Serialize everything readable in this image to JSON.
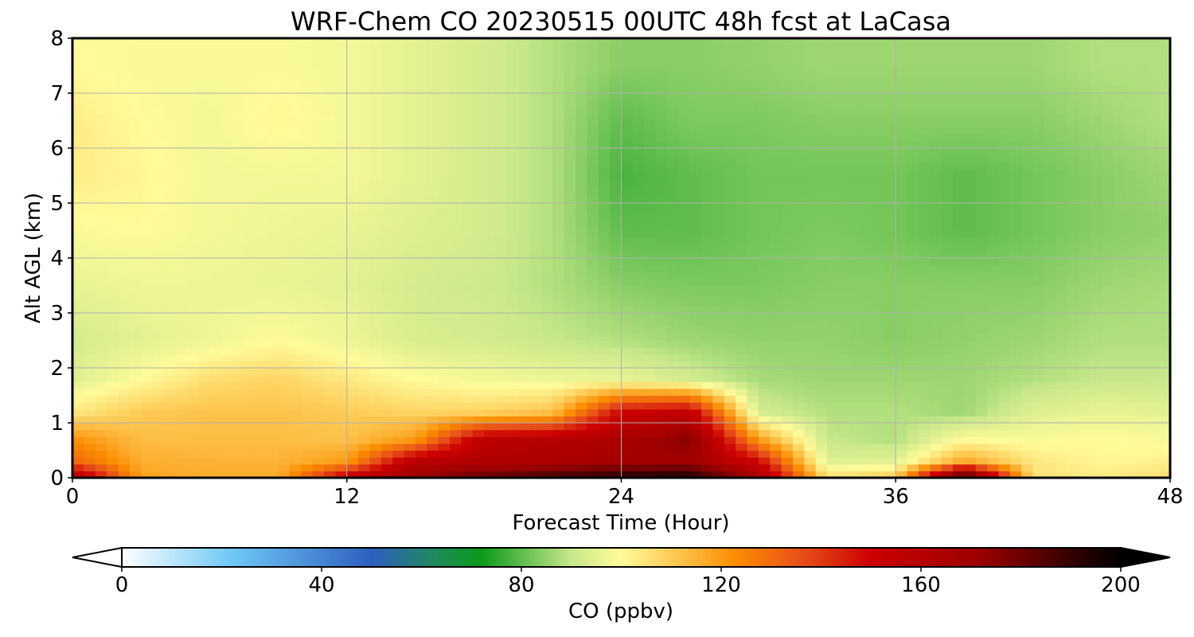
{
  "chart_data": {
    "type": "heatmap",
    "subtype": "filled-contour time-height cross section",
    "title": "WRF-Chem CO  20230515 00UTC 48h fcst at LaCasa",
    "xlabel": "Forecast Time (Hour)",
    "ylabel": "Alt AGL (km)",
    "xlim": [
      0,
      48
    ],
    "ylim": [
      0,
      8
    ],
    "x_ticks": [
      0,
      12,
      24,
      36,
      48
    ],
    "y_ticks": [
      0,
      1,
      2,
      3,
      4,
      5,
      6,
      7,
      8
    ],
    "grid": true,
    "colorbar": {
      "label": "CO  (ppbv)",
      "orientation": "horizontal",
      "position": "bottom",
      "range": [
        0,
        200
      ],
      "ticks": [
        0,
        40,
        80,
        120,
        160,
        200
      ],
      "extend": "both",
      "colormap_stops": [
        {
          "value": 0,
          "color": "#ffffff"
        },
        {
          "value": 22,
          "color": "#6ec8f5"
        },
        {
          "value": 50,
          "color": "#2f5fbf"
        },
        {
          "value": 63,
          "color": "#1f8a5a"
        },
        {
          "value": 72,
          "color": "#0a9a1a"
        },
        {
          "value": 90,
          "color": "#c8e88a"
        },
        {
          "value": 100,
          "color": "#fffb9a"
        },
        {
          "value": 112,
          "color": "#fdc24a"
        },
        {
          "value": 123,
          "color": "#fb8c00"
        },
        {
          "value": 136,
          "color": "#e8501a"
        },
        {
          "value": 150,
          "color": "#cc0000"
        },
        {
          "value": 172,
          "color": "#9b0000"
        },
        {
          "value": 192,
          "color": "#2a0000"
        },
        {
          "value": 200,
          "color": "#000000"
        }
      ]
    },
    "hours": [
      0,
      3,
      6,
      9,
      12,
      15,
      18,
      21,
      24,
      27,
      30,
      33,
      36,
      39,
      42,
      45,
      48
    ],
    "altitudes_km": [
      0.05,
      0.3,
      0.7,
      1.2,
      1.8,
      2.5,
      3.5,
      4.5,
      5.5,
      6.5,
      7.5
    ],
    "co_ppbv": [
      [
        160,
        118,
        116,
        116,
        150,
        170,
        180,
        185,
        190,
        192,
        165,
        104,
        108,
        185,
        105,
        103,
        106
      ],
      [
        132,
        116,
        115,
        115,
        120,
        160,
        162,
        165,
        168,
        170,
        150,
        94,
        95,
        118,
        104,
        101,
        102
      ],
      [
        122,
        113,
        113,
        113,
        112,
        120,
        158,
        160,
        165,
        176,
        120,
        90,
        88,
        100,
        99,
        100,
        99
      ],
      [
        104,
        110,
        112,
        112,
        110,
        108,
        108,
        112,
        150,
        155,
        92,
        88,
        88,
        86,
        94,
        96,
        95
      ],
      [
        94,
        100,
        106,
        108,
        104,
        100,
        98,
        97,
        96,
        92,
        87,
        86,
        86,
        86,
        88,
        90,
        90
      ],
      [
        92,
        95,
        97,
        100,
        97,
        93,
        92,
        90,
        88,
        86,
        85,
        85,
        84,
        85,
        86,
        88,
        88
      ],
      [
        96,
        97,
        97,
        96,
        95,
        92,
        91,
        88,
        84,
        83,
        83,
        84,
        84,
        84,
        84,
        86,
        87
      ],
      [
        99,
        100,
        98,
        97,
        96,
        94,
        92,
        88,
        80,
        80,
        82,
        83,
        82,
        80,
        82,
        84,
        85
      ],
      [
        103,
        101,
        98,
        98,
        98,
        95,
        92,
        88,
        78,
        80,
        82,
        82,
        82,
        80,
        82,
        84,
        86
      ],
      [
        103,
        100,
        98,
        101,
        98,
        95,
        92,
        88,
        80,
        83,
        83,
        84,
        84,
        84,
        84,
        86,
        88
      ],
      [
        100,
        99,
        99,
        99,
        98,
        95,
        92,
        88,
        84,
        84,
        85,
        86,
        86,
        86,
        86,
        88,
        88
      ]
    ]
  }
}
